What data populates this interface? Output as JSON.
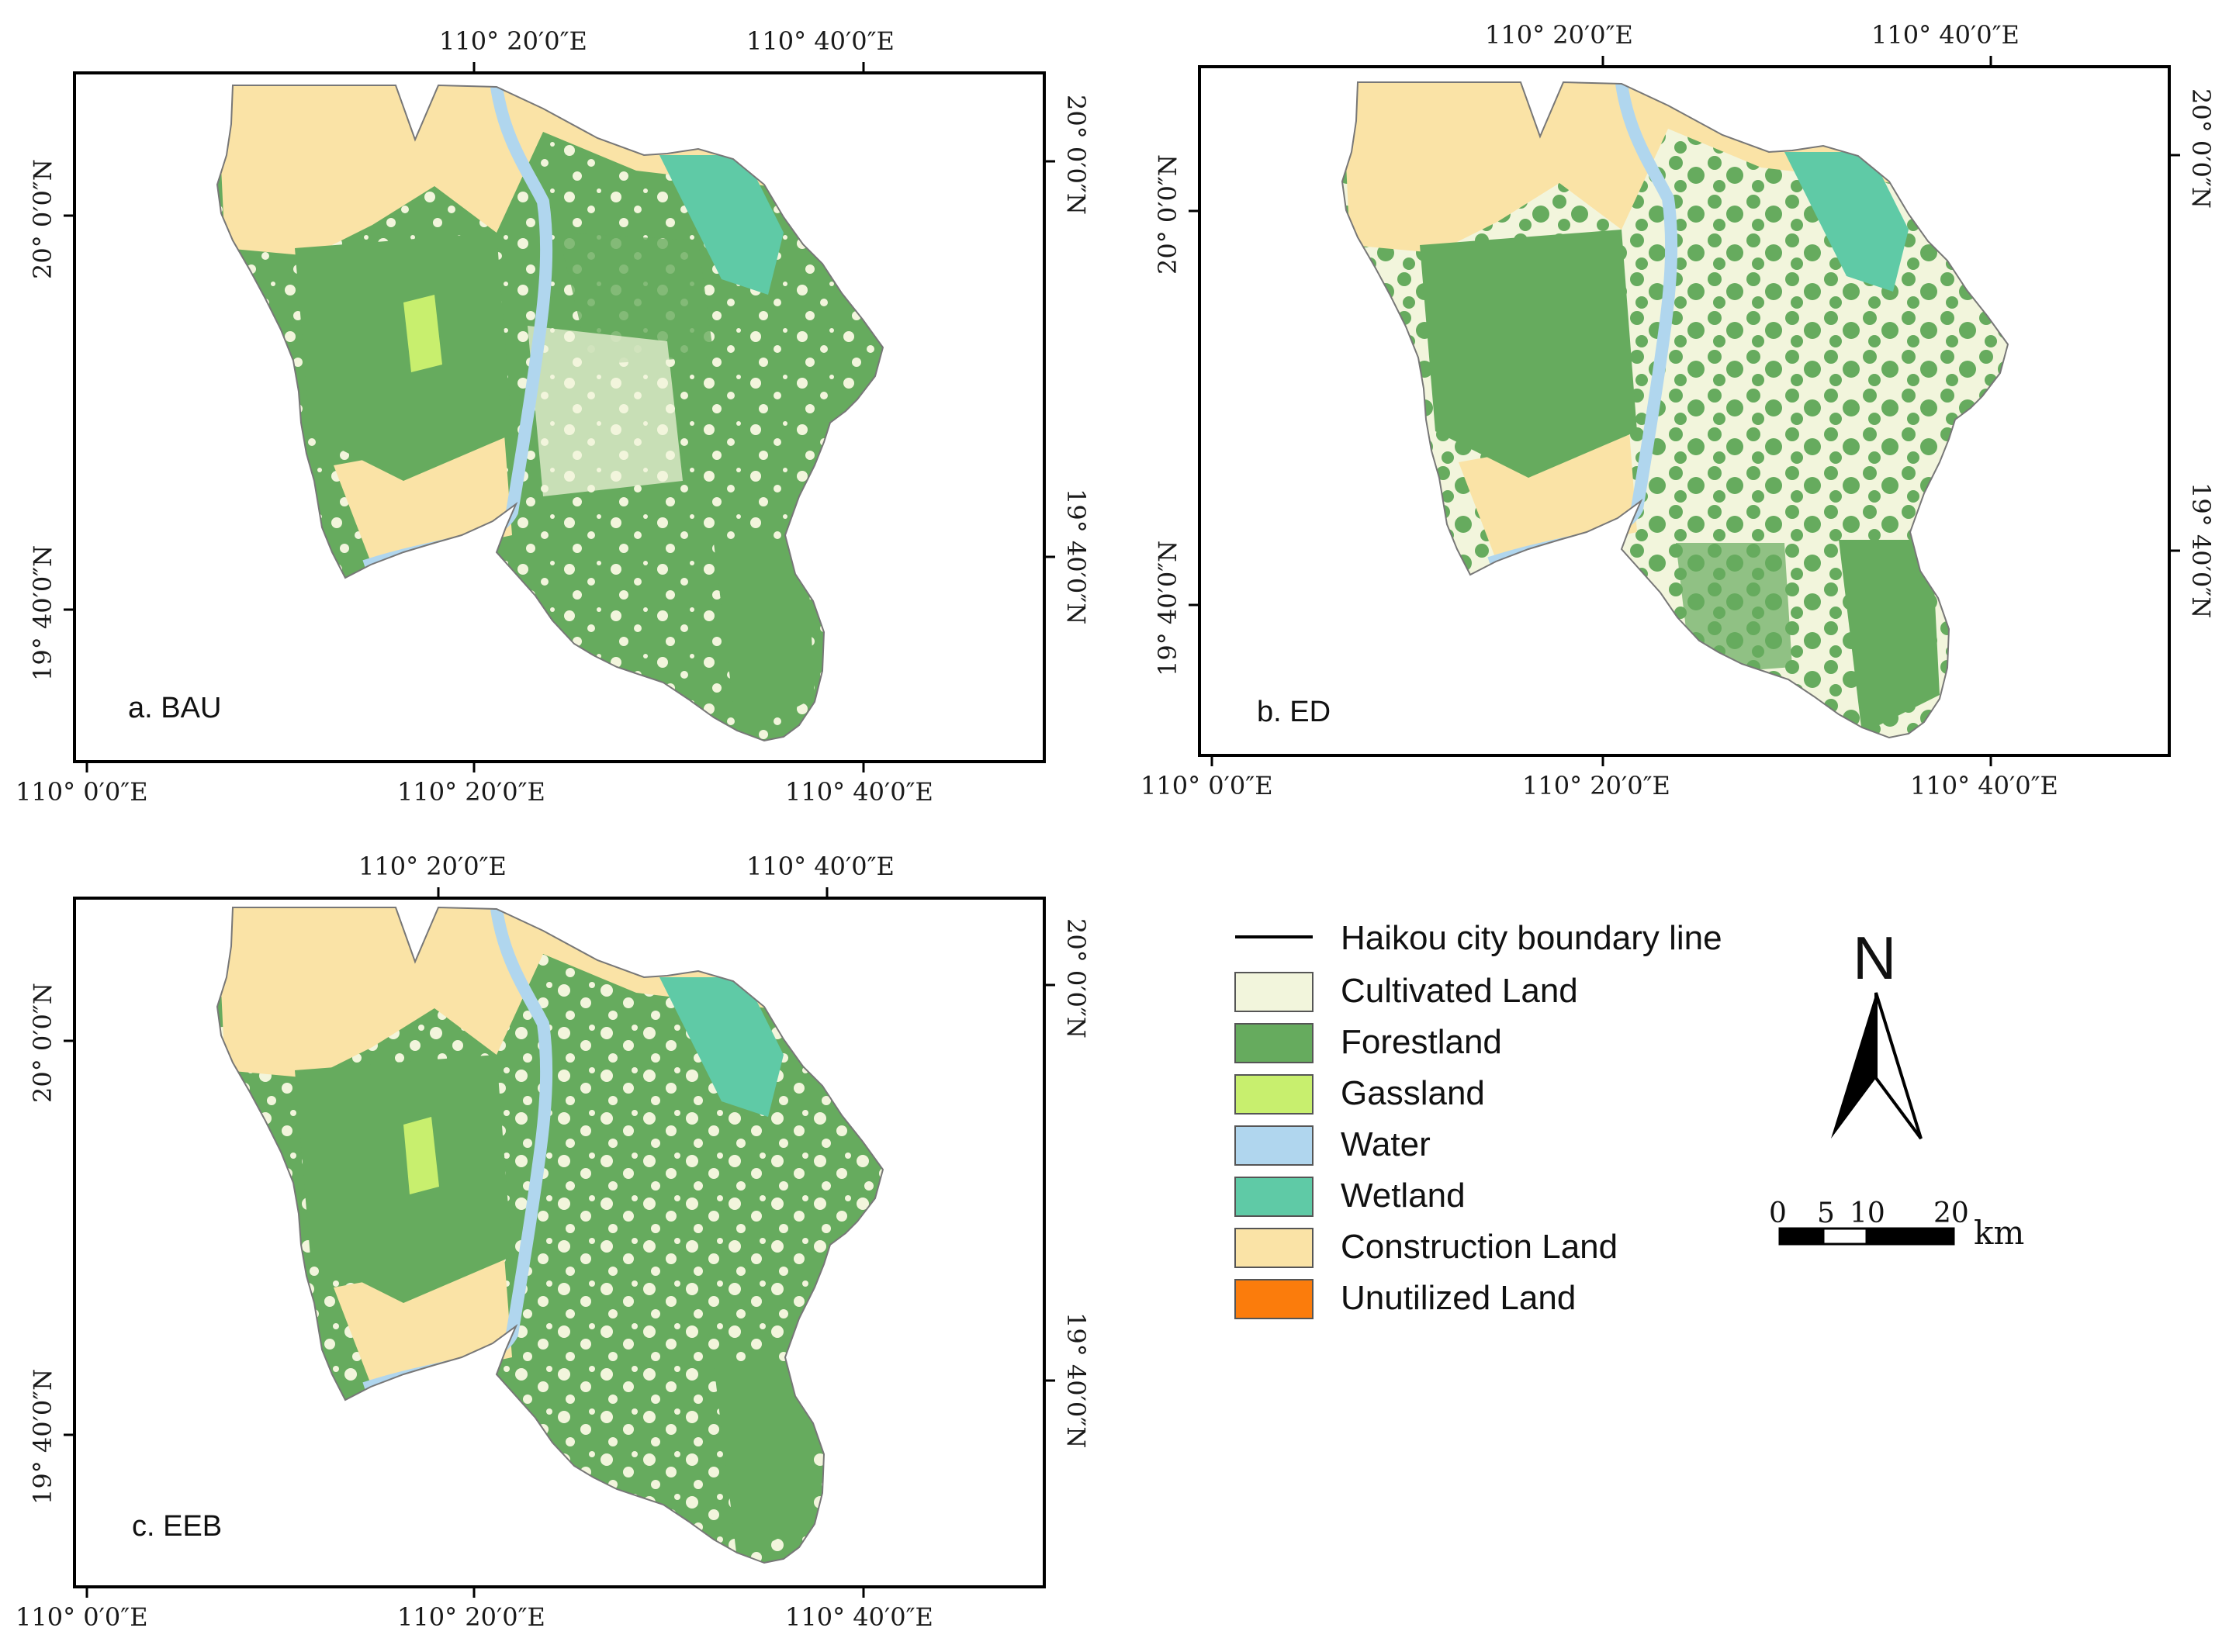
{
  "colors": {
    "cultivated": "#f2f5dc",
    "forest": "#66ab5e",
    "grass": "#c8ef6e",
    "water": "#b0d6ee",
    "wetland": "#5fcaa6",
    "construction": "#fae3a6",
    "unutilized": "#fb7c0c",
    "boundary": "#000000",
    "frame": "#000000"
  },
  "panels": [
    {
      "label": "a. BAU",
      "top_ticks": [
        "110° 20′0″E",
        "110° 40′0″E"
      ],
      "bottom_ticks": [
        "110° 0′0″E",
        "110° 20′0″E",
        "110° 40′0″E"
      ],
      "left_ticks": [
        "20° 0′0″N",
        "19° 40′0″N"
      ],
      "right_ticks": [
        "20° 0′0″N",
        "19° 40′0″N"
      ]
    },
    {
      "label": "b. ED",
      "top_ticks": [
        "110° 20′0″E",
        "110° 40′0″E"
      ],
      "bottom_ticks": [
        "110° 0′0″E",
        "110° 20′0″E",
        "110° 40′0″E"
      ],
      "left_ticks": [
        "20° 0′0″N",
        "19° 40′0″N"
      ],
      "right_ticks": [
        "20° 0′0″N",
        "19° 40′0″N"
      ]
    },
    {
      "label": "c. EEB",
      "top_ticks": [
        "110° 20′0″E",
        "110° 40′0″E"
      ],
      "bottom_ticks": [
        "110° 0′0″E",
        "110° 20′0″E",
        "110° 40′0″E"
      ],
      "left_ticks": [
        "20° 0′0″N",
        "19° 40′0″N"
      ],
      "right_ticks": [
        "20° 0′0″N",
        "19° 40′0″N"
      ]
    }
  ],
  "legend": {
    "boundary_label": "Haikou city boundary line",
    "items": [
      {
        "label": "Cultivated Land",
        "color": "#f2f5dc"
      },
      {
        "label": "Forestland",
        "color": "#66ab5e"
      },
      {
        "label": "Gassland",
        "color": "#c8ef6e"
      },
      {
        "label": "Water",
        "color": "#b0d6ee"
      },
      {
        "label": "Wetland",
        "color": "#5fcaa6"
      },
      {
        "label": "Construction Land",
        "color": "#fae3a6"
      },
      {
        "label": "Unutilized Land",
        "color": "#fb7c0c"
      }
    ]
  },
  "north_arrow": {
    "letter": "N"
  },
  "scale_bar": {
    "labels": [
      "0",
      "5",
      "10",
      "20"
    ],
    "unit": "km"
  }
}
